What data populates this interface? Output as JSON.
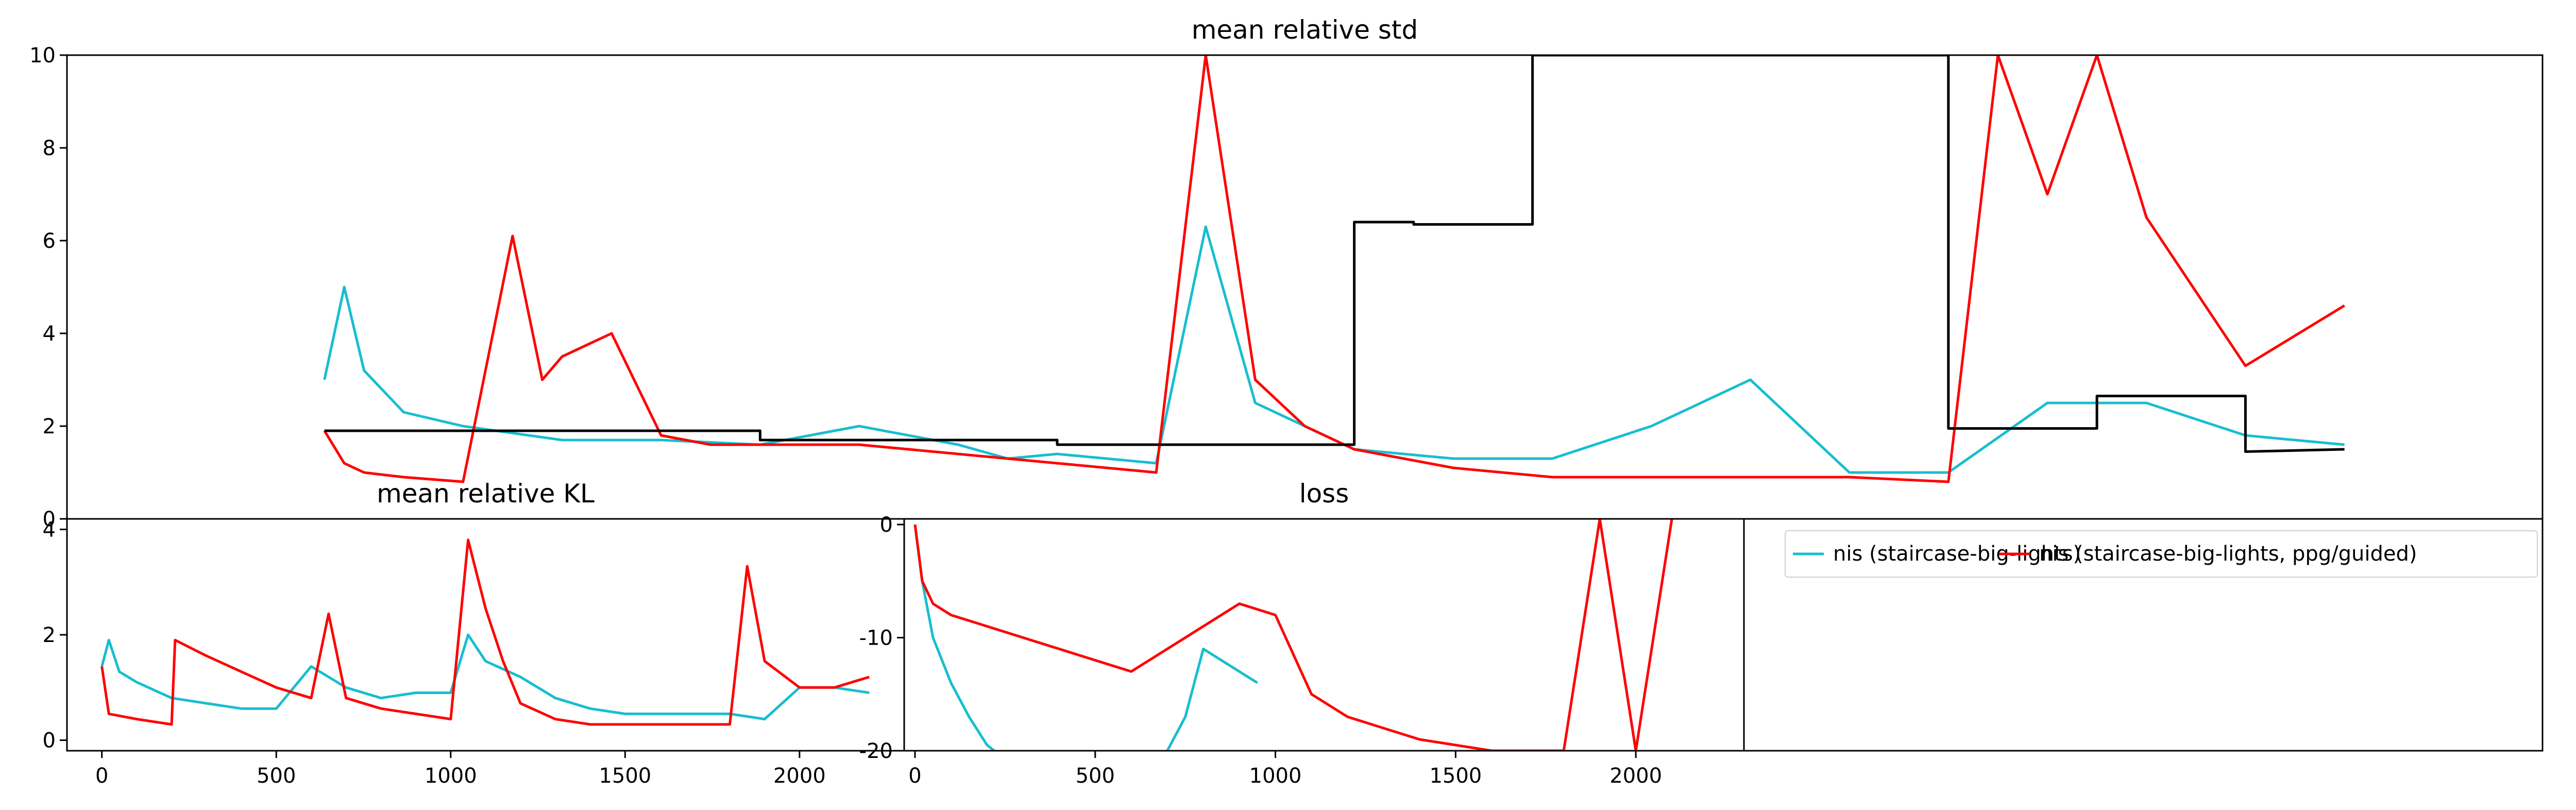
{
  "chart_data": [
    {
      "type": "line",
      "title": "mean relative std",
      "xlim": [
        -100,
        2400
      ],
      "ylim": [
        0,
        10
      ],
      "yticks": [
        0,
        2,
        4,
        6,
        8,
        10
      ],
      "grid": false,
      "series": [
        {
          "color": "#17becf",
          "x": [
            160,
            180,
            200,
            240,
            300,
            400,
            500,
            600,
            700,
            800,
            850,
            900,
            1000,
            1050,
            1100,
            1150,
            1200,
            1250,
            1300,
            1400,
            1500,
            1600,
            1700,
            1800,
            1900,
            2000,
            2100,
            2200
          ],
          "y": [
            3.0,
            5.0,
            3.2,
            2.3,
            2.0,
            1.7,
            1.7,
            1.6,
            2.0,
            1.6,
            1.3,
            1.4,
            1.2,
            6.3,
            2.5,
            2.0,
            1.5,
            1.4,
            1.3,
            1.3,
            2.0,
            3.0,
            1.0,
            1.0,
            2.5,
            2.5,
            1.8,
            1.6
          ]
        },
        {
          "color": "#ff0000",
          "x": [
            160,
            180,
            200,
            240,
            300,
            350,
            380,
            400,
            450,
            500,
            550,
            600,
            700,
            800,
            900,
            1000,
            1050,
            1100,
            1150,
            1200,
            1300,
            1400,
            1500,
            1600,
            1700,
            1800,
            1850,
            1900,
            1950,
            2000,
            2100,
            2200
          ],
          "y": [
            1.9,
            1.2,
            1.0,
            0.9,
            0.8,
            6.1,
            3.0,
            3.5,
            4.0,
            1.8,
            1.6,
            1.6,
            1.6,
            1.4,
            1.2,
            1.0,
            10.0,
            3.0,
            2.0,
            1.5,
            1.1,
            0.9,
            0.9,
            0.9,
            0.9,
            0.8,
            10.0,
            7.0,
            10.0,
            6.5,
            3.3,
            4.6
          ]
        },
        {
          "color": "#000000",
          "x": [
            160,
            600,
            600,
            900,
            900,
            1200,
            1200,
            1260,
            1260,
            1380,
            1380,
            1800,
            1800,
            1950,
            1950,
            2100,
            2100,
            2200
          ],
          "y": [
            1.9,
            1.9,
            1.7,
            1.7,
            1.6,
            1.6,
            6.4,
            6.4,
            6.35,
            6.35,
            10.0,
            10.0,
            1.95,
            1.95,
            2.65,
            2.65,
            1.45,
            1.5
          ]
        }
      ]
    },
    {
      "type": "line",
      "title": "mean relative KL",
      "xlim": [
        -100,
        2300
      ],
      "ylim": [
        -0.2,
        4.2
      ],
      "xticks": [
        0,
        500,
        1000,
        1500,
        2000
      ],
      "yticks": [
        0,
        2,
        4
      ],
      "grid": false,
      "series": [
        {
          "color": "#17becf",
          "x": [
            0,
            20,
            50,
            100,
            200,
            300,
            400,
            500,
            600,
            700,
            800,
            900,
            1000,
            1050,
            1100,
            1200,
            1300,
            1400,
            1500,
            1600,
            1700,
            1800,
            1900,
            2000,
            2100,
            2200
          ],
          "y": [
            1.4,
            1.9,
            1.3,
            1.1,
            0.8,
            0.7,
            0.6,
            0.6,
            1.4,
            1.0,
            0.8,
            0.9,
            0.9,
            2.0,
            1.5,
            1.2,
            0.8,
            0.6,
            0.5,
            0.5,
            0.5,
            0.5,
            0.4,
            1.0,
            1.0,
            0.9
          ]
        },
        {
          "color": "#ff0000",
          "x": [
            0,
            20,
            100,
            200,
            210,
            300,
            400,
            500,
            600,
            650,
            700,
            800,
            900,
            1000,
            1050,
            1100,
            1150,
            1200,
            1300,
            1400,
            1500,
            1600,
            1700,
            1800,
            1850,
            1900,
            2000,
            2100,
            2200
          ],
          "y": [
            1.4,
            0.5,
            0.4,
            0.3,
            1.9,
            1.6,
            1.3,
            1.0,
            0.8,
            2.4,
            0.8,
            0.6,
            0.5,
            0.4,
            3.8,
            2.5,
            1.5,
            0.7,
            0.4,
            0.3,
            0.3,
            0.3,
            0.3,
            0.3,
            3.3,
            1.5,
            1.0,
            1.0,
            1.2
          ]
        }
      ]
    },
    {
      "type": "line",
      "title": "loss",
      "xlim": [
        -30,
        2300
      ],
      "ylim": [
        -20,
        0.5
      ],
      "xticks": [
        0,
        500,
        1000,
        1500,
        2000
      ],
      "yticks": [
        0,
        -10,
        -20
      ],
      "grid": false,
      "series": [
        {
          "color": "#17becf",
          "x": [
            0,
            20,
            50,
            100,
            150,
            200,
            220
          ],
          "y": [
            0,
            -5,
            -10,
            -14,
            -17,
            -19.5,
            -20
          ]
        },
        {
          "color": "#ff0000",
          "x": [
            0,
            20,
            50,
            100,
            200,
            300,
            400,
            500,
            600,
            700,
            800,
            900,
            1000,
            1100,
            1200,
            1300,
            1400,
            1500,
            1600,
            1700,
            1800,
            1900,
            2000,
            2100
          ],
          "y": [
            0,
            -5,
            -7,
            -8,
            -9,
            -10,
            -11,
            -12,
            -13,
            -11,
            -9,
            -7,
            -8,
            -15,
            -17,
            -18,
            -19,
            -19.5,
            -20,
            -20,
            -20,
            0.5,
            -20,
            0.5
          ]
        },
        {
          "color": "#17becf",
          "x": [
            700,
            750,
            800,
            850,
            900,
            950
          ],
          "y": [
            -20,
            -17,
            -11,
            -12,
            -13,
            -14
          ]
        }
      ]
    }
  ],
  "legend": {
    "placement": "top-left",
    "entries": [
      {
        "label": "nis (staircase-big-lights)",
        "color": "#17becf"
      },
      {
        "label": "nis (staircase-big-lights, ppg/guided)",
        "color": "#ff0000"
      }
    ]
  }
}
